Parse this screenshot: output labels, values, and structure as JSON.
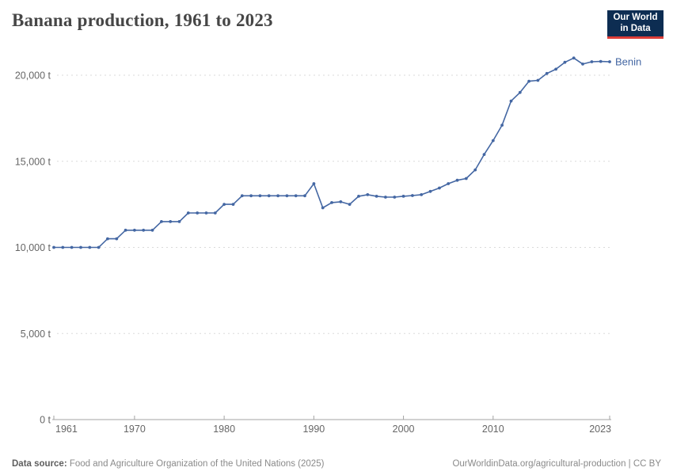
{
  "header": {
    "title": "Banana production, 1961 to 2023",
    "logo": {
      "line1": "Our World",
      "line2": "in Data"
    }
  },
  "chart_data": {
    "type": "line",
    "title": "Banana production, 1961 to 2023",
    "unit": "t",
    "xlim": [
      1961,
      2023
    ],
    "ylim": [
      0,
      20000
    ],
    "grid": "horizontal-dashed",
    "legend_position": "end-of-line-label",
    "x_ticks": [
      1961,
      1970,
      1980,
      1990,
      2000,
      2010,
      2023
    ],
    "y_ticks": [
      {
        "value": 0,
        "label": "0 t"
      },
      {
        "value": 5000,
        "label": "5,000 t"
      },
      {
        "value": 10000,
        "label": "10,000 t"
      },
      {
        "value": 15000,
        "label": "15,000 t"
      },
      {
        "value": 20000,
        "label": "20,000 t"
      }
    ],
    "series": [
      {
        "name": "Benin",
        "color": "#4467a3",
        "points": [
          [
            1961,
            10000
          ],
          [
            1962,
            10000
          ],
          [
            1963,
            10000
          ],
          [
            1964,
            10000
          ],
          [
            1965,
            10000
          ],
          [
            1966,
            10000
          ],
          [
            1967,
            10500
          ],
          [
            1968,
            10500
          ],
          [
            1969,
            11000
          ],
          [
            1970,
            11000
          ],
          [
            1971,
            11000
          ],
          [
            1972,
            11000
          ],
          [
            1973,
            11500
          ],
          [
            1974,
            11500
          ],
          [
            1975,
            11500
          ],
          [
            1976,
            12000
          ],
          [
            1977,
            12000
          ],
          [
            1978,
            12000
          ],
          [
            1979,
            12000
          ],
          [
            1980,
            12500
          ],
          [
            1981,
            12500
          ],
          [
            1982,
            13000
          ],
          [
            1983,
            13000
          ],
          [
            1984,
            13000
          ],
          [
            1985,
            13000
          ],
          [
            1986,
            13000
          ],
          [
            1987,
            13000
          ],
          [
            1988,
            13000
          ],
          [
            1989,
            13000
          ],
          [
            1990,
            13700
          ],
          [
            1991,
            12300
          ],
          [
            1992,
            12600
          ],
          [
            1993,
            12650
          ],
          [
            1994,
            12500
          ],
          [
            1995,
            12970
          ],
          [
            1996,
            13060
          ],
          [
            1997,
            12970
          ],
          [
            1998,
            12920
          ],
          [
            1999,
            12920
          ],
          [
            2000,
            12970
          ],
          [
            2001,
            13010
          ],
          [
            2002,
            13060
          ],
          [
            2003,
            13250
          ],
          [
            2004,
            13450
          ],
          [
            2005,
            13700
          ],
          [
            2006,
            13900
          ],
          [
            2007,
            14000
          ],
          [
            2008,
            14500
          ],
          [
            2009,
            15400
          ],
          [
            2010,
            16200
          ],
          [
            2011,
            17100
          ],
          [
            2012,
            18500
          ],
          [
            2013,
            19000
          ],
          [
            2014,
            19650
          ],
          [
            2015,
            19700
          ],
          [
            2016,
            20100
          ],
          [
            2017,
            20350
          ],
          [
            2018,
            20750
          ],
          [
            2019,
            21000
          ],
          [
            2020,
            20650
          ],
          [
            2021,
            20780
          ],
          [
            2022,
            20800
          ],
          [
            2023,
            20780
          ]
        ]
      }
    ],
    "colors": {
      "line": "#4467a3",
      "gridline": "#dadada",
      "axis": "#a3a3a3",
      "tick_text": "#666666"
    }
  },
  "footer": {
    "datasource_label": "Data source:",
    "datasource_text": " Food and Agriculture Organization of the United Nations (2025)",
    "credit": "OurWorldinData.org/agricultural-production | CC BY"
  }
}
